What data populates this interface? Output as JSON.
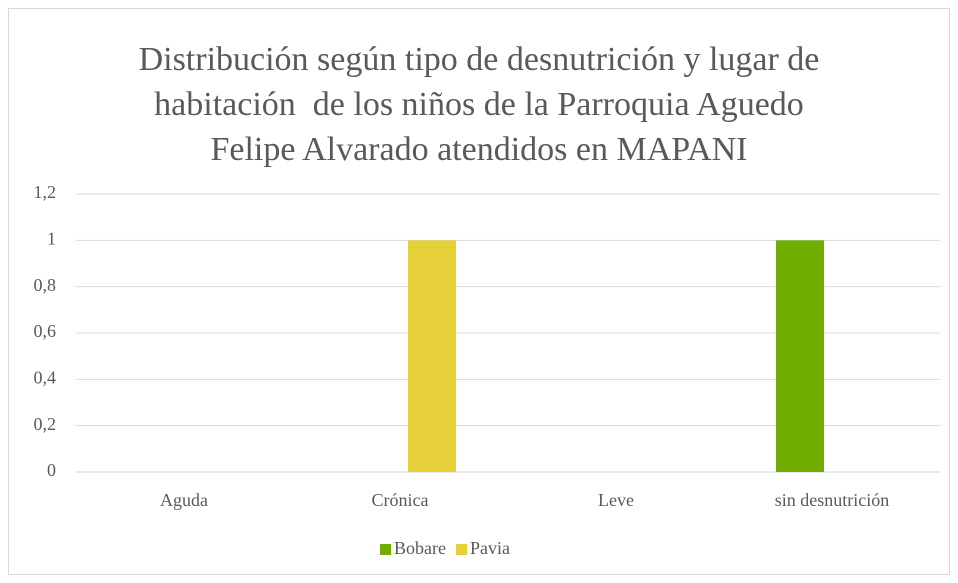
{
  "chart_data": {
    "type": "bar",
    "title": [
      "Distribución según tipo de desnutrición y lugar de",
      "habitación  de los niños de la Parroquia Aguedo",
      "Felipe Alvarado atendidos en MAPANI"
    ],
    "categories": [
      "Aguda",
      "Crónica",
      "Leve",
      "sin desnutrición"
    ],
    "series": [
      {
        "name": "Bobare",
        "color": "#70ad00",
        "values": [
          0,
          0,
          0,
          1
        ]
      },
      {
        "name": "Pavia",
        "color": "#e5d03a",
        "values": [
          0,
          1,
          0,
          0
        ]
      }
    ],
    "ylim": [
      0,
      1.2
    ],
    "yticks": [
      0,
      {
        "value": 0.2,
        "label": "0,2"
      },
      {
        "value": 0.4,
        "label": "0,4"
      },
      {
        "value": 0.6,
        "label": "0,6"
      },
      {
        "value": 0.8,
        "label": "0,8"
      },
      1,
      {
        "value": 1.2,
        "label": "1,2"
      }
    ],
    "grid": true,
    "legend": "bottom"
  }
}
